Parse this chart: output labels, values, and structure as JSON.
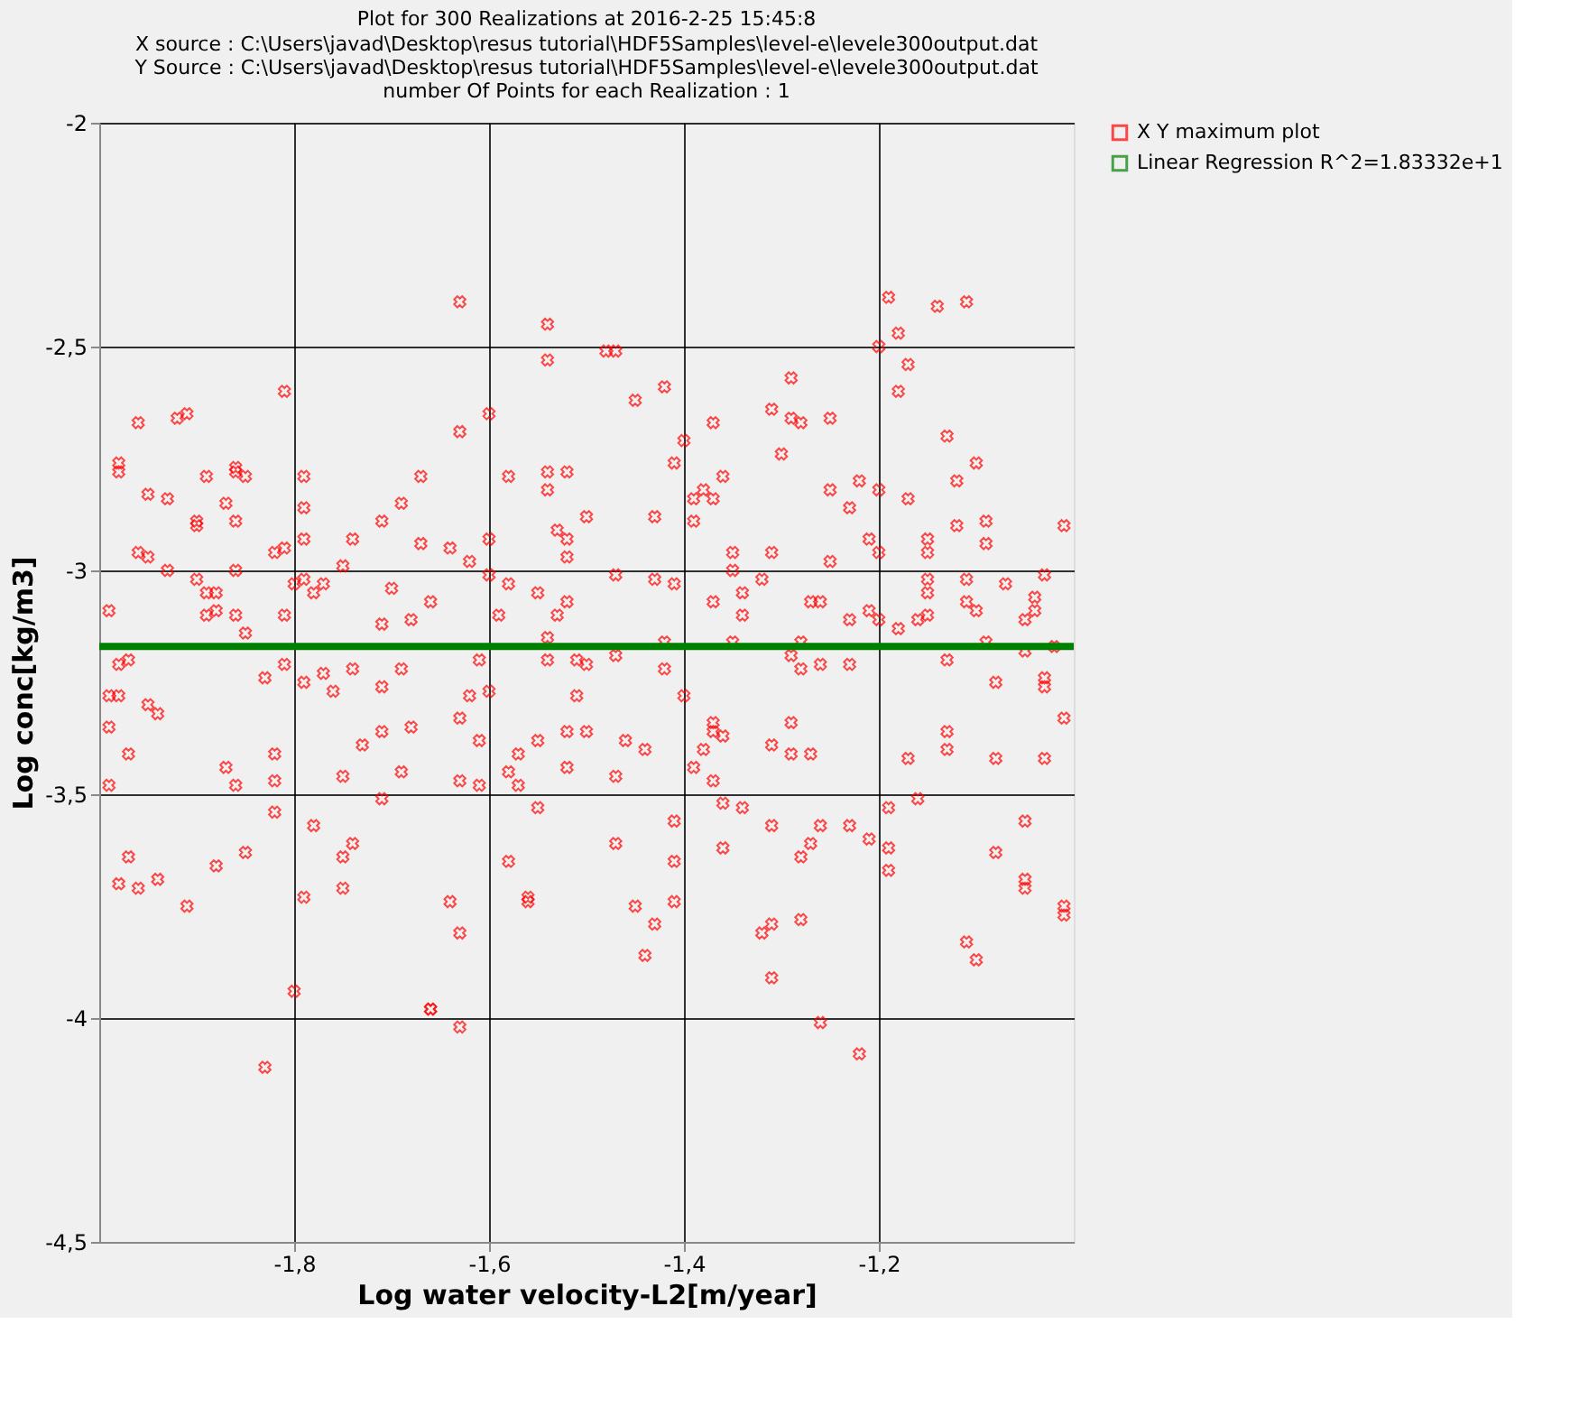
{
  "chart_data": {
    "type": "scatter",
    "title": "Plot for 300 Realizations at 2016-2-25  15:45:8",
    "subtitle": "X source : C:\\Users\\javad\\Desktop\\resus tutorial\\HDF5Samples\\level-e\\levele300output.dat\nY Source : C:\\Users\\javad\\Desktop\\resus tutorial\\HDF5Samples\\level-e\\levele300output.dat\nnumber Of Points for each Realization : 1",
    "xlabel": "Log water velocity-L2[m/year]",
    "ylabel": "Log conc[kg/m3]",
    "xlim": [
      -2.0,
      -1.0
    ],
    "ylim": [
      -4.5,
      -2
    ],
    "xticks": [
      {
        "value": -1.8,
        "label": "-1,8"
      },
      {
        "value": -1.6,
        "label": "-1,6"
      },
      {
        "value": -1.4,
        "label": "-1,4"
      },
      {
        "value": -1.2,
        "label": "-1,2"
      }
    ],
    "yticks": [
      {
        "value": -4.5,
        "label": "-4,5"
      },
      {
        "value": -4,
        "label": "-4"
      },
      {
        "value": -3.5,
        "label": "-3,5"
      },
      {
        "value": -3,
        "label": "-3"
      },
      {
        "value": -2.5,
        "label": "-2,5"
      },
      {
        "value": -2,
        "label": "-2"
      }
    ],
    "grid": true,
    "legend": "top right",
    "marker": "cross",
    "series": [
      {
        "name": "X Y maximum plot",
        "color": "#ff0000",
        "x": [
          -1.63,
          -1.54,
          -1.54,
          -1.48,
          -1.47,
          -1.42,
          -1.45,
          -1.6,
          -1.63,
          -1.37,
          -1.4,
          -1.41,
          -1.36,
          -1.58,
          -1.54,
          -1.52,
          -1.54,
          -1.38,
          -1.39,
          -1.37,
          -1.5,
          -1.43,
          -1.39,
          -1.53,
          -1.52,
          -1.52,
          -1.35,
          -1.35,
          -1.64,
          -1.62,
          -1.6,
          -1.6,
          -1.47,
          -1.58,
          -1.55,
          -1.52,
          -1.53,
          -1.43,
          -1.41,
          -1.37,
          -1.34,
          -1.34,
          -1.66,
          -1.59,
          -1.54,
          -1.42,
          -1.35,
          -1.61,
          -1.54,
          -1.51,
          -1.5,
          -1.47,
          -1.42,
          -1.81,
          -1.96,
          -1.92,
          -1.91,
          -1.98,
          -1.98,
          -1.95,
          -1.93,
          -1.89,
          -1.86,
          -1.86,
          -1.85,
          -1.79,
          -1.79,
          -1.87,
          -1.9,
          -1.9,
          -1.86,
          -1.79,
          -1.74,
          -1.67,
          -1.69,
          -1.71,
          -1.67,
          -1.96,
          -1.95,
          -1.93,
          -1.86,
          -1.82,
          -1.81,
          -1.75,
          -1.8,
          -1.79,
          -1.78,
          -1.77,
          -1.7,
          -1.9,
          -1.89,
          -1.88,
          -1.99,
          -1.89,
          -1.88,
          -1.86,
          -1.81,
          -1.85,
          -1.71,
          -1.68,
          -1.98,
          -1.97,
          -1.81,
          -1.83,
          -1.79,
          -1.77,
          -1.74,
          -1.69,
          -1.71,
          -1.19,
          -1.14,
          -1.11,
          -1.18,
          -1.2,
          -1.17,
          -1.18,
          -1.29,
          -1.31,
          -1.29,
          -1.28,
          -1.25,
          -1.13,
          -1.3,
          -1.1,
          -1.22,
          -1.25,
          -1.23,
          -1.2,
          -1.17,
          -1.12,
          -1.12,
          -1.09,
          -1.01,
          -1.21,
          -1.2,
          -1.31,
          -1.25,
          -1.15,
          -1.15,
          -1.09,
          -1.32,
          -1.15,
          -1.11,
          -1.07,
          -1.03,
          -1.15,
          -1.27,
          -1.26,
          -1.11,
          -1.1,
          -1.04,
          -1.04,
          -1.05,
          -1.23,
          -1.21,
          -1.2,
          -1.18,
          -1.16,
          -1.15,
          -1.28,
          -1.09,
          -1.02,
          -1.29,
          -1.28,
          -1.26,
          -1.23,
          -1.13,
          -1.05,
          -1.03,
          -1.03,
          -1.08,
          -1.99,
          -1.98,
          -1.95,
          -1.94,
          -1.99,
          -1.97,
          -1.87,
          -1.86,
          -1.82,
          -1.82,
          -1.99,
          -1.82,
          -1.97,
          -1.98,
          -1.96,
          -1.94,
          -1.88,
          -1.85,
          -1.91,
          -1.8,
          -1.83,
          -1.78,
          -1.74,
          -1.75,
          -1.75,
          -1.79,
          -1.71,
          -1.73,
          -1.71,
          -1.68,
          -1.69,
          -1.75,
          -1.76,
          -1.66,
          -1.62,
          -1.6,
          -1.51,
          -1.4,
          -1.63,
          -1.61,
          -1.57,
          -1.55,
          -1.52,
          -1.5,
          -1.46,
          -1.44,
          -1.52,
          -1.47,
          -1.63,
          -1.61,
          -1.58,
          -1.57,
          -1.37,
          -1.37,
          -1.36,
          -1.38,
          -1.39,
          -1.37,
          -1.36,
          -1.34,
          -1.55,
          -1.41,
          -1.47,
          -1.58,
          -1.41,
          -1.36,
          -1.56,
          -1.56,
          -1.64,
          -1.45,
          -1.43,
          -1.41,
          -1.63,
          -1.44,
          -1.66,
          -1.63,
          -1.01,
          -1.29,
          -1.31,
          -1.29,
          -1.27,
          -1.13,
          -1.13,
          -1.17,
          -1.08,
          -1.03,
          -1.19,
          -1.16,
          -1.31,
          -1.26,
          -1.23,
          -1.21,
          -1.19,
          -1.27,
          -1.28,
          -1.19,
          -1.05,
          -1.08,
          -1.05,
          -1.05,
          -1.01,
          -1.01,
          -1.32,
          -1.31,
          -1.28,
          -1.11,
          -1.1,
          -1.31,
          -1.26,
          -1.22
        ],
        "values": [
          -2.4,
          -2.45,
          -2.53,
          -2.51,
          -2.51,
          -2.59,
          -2.62,
          -2.65,
          -2.69,
          -2.67,
          -2.71,
          -2.76,
          -2.79,
          -2.79,
          -2.78,
          -2.78,
          -2.82,
          -2.82,
          -2.84,
          -2.84,
          -2.88,
          -2.88,
          -2.89,
          -2.91,
          -2.93,
          -2.97,
          -2.96,
          -3.0,
          -2.95,
          -2.98,
          -2.93,
          -3.01,
          -3.01,
          -3.03,
          -3.05,
          -3.07,
          -3.1,
          -3.02,
          -3.03,
          -3.07,
          -3.05,
          -3.1,
          -3.07,
          -3.1,
          -3.15,
          -3.16,
          -3.16,
          -3.2,
          -3.2,
          -3.2,
          -3.21,
          -3.19,
          -3.22,
          -2.6,
          -2.67,
          -2.66,
          -2.65,
          -2.76,
          -2.78,
          -2.83,
          -2.84,
          -2.79,
          -2.78,
          -2.77,
          -2.79,
          -2.79,
          -2.86,
          -2.85,
          -2.89,
          -2.9,
          -2.89,
          -2.93,
          -2.93,
          -2.79,
          -2.85,
          -2.89,
          -2.94,
          -2.96,
          -2.97,
          -3.0,
          -3.0,
          -2.96,
          -2.95,
          -2.99,
          -3.03,
          -3.02,
          -3.05,
          -3.03,
          -3.04,
          -3.02,
          -3.05,
          -3.05,
          -3.09,
          -3.1,
          -3.09,
          -3.1,
          -3.1,
          -3.14,
          -3.12,
          -3.11,
          -3.21,
          -3.2,
          -3.21,
          -3.24,
          -3.25,
          -3.23,
          -3.22,
          -3.22,
          -3.26,
          -2.39,
          -2.41,
          -2.4,
          -2.47,
          -2.5,
          -2.54,
          -2.6,
          -2.57,
          -2.64,
          -2.66,
          -2.67,
          -2.66,
          -2.7,
          -2.74,
          -2.76,
          -2.8,
          -2.82,
          -2.86,
          -2.82,
          -2.84,
          -2.8,
          -2.9,
          -2.89,
          -2.9,
          -2.93,
          -2.96,
          -2.96,
          -2.98,
          -2.93,
          -2.96,
          -2.94,
          -3.02,
          -3.02,
          -3.02,
          -3.03,
          -3.01,
          -3.05,
          -3.07,
          -3.07,
          -3.07,
          -3.09,
          -3.06,
          -3.09,
          -3.11,
          -3.11,
          -3.09,
          -3.11,
          -3.13,
          -3.11,
          -3.1,
          -3.16,
          -3.16,
          -3.17,
          -3.19,
          -3.22,
          -3.21,
          -3.21,
          -3.2,
          -3.18,
          -3.24,
          -3.26,
          -3.25,
          -3.28,
          -3.28,
          -3.3,
          -3.32,
          -3.35,
          -3.41,
          -3.44,
          -3.48,
          -3.41,
          -3.47,
          -3.48,
          -3.54,
          -3.64,
          -3.7,
          -3.71,
          -3.69,
          -3.66,
          -3.63,
          -3.75,
          -3.94,
          -4.11,
          -3.57,
          -3.61,
          -3.64,
          -3.71,
          -3.73,
          -3.51,
          -3.39,
          -3.36,
          -3.35,
          -3.45,
          -3.46,
          -3.27,
          -3.98,
          -3.28,
          -3.27,
          -3.28,
          -3.28,
          -3.33,
          -3.38,
          -3.41,
          -3.38,
          -3.36,
          -3.36,
          -3.38,
          -3.4,
          -3.44,
          -3.46,
          -3.47,
          -3.48,
          -3.45,
          -3.48,
          -3.34,
          -3.36,
          -3.37,
          -3.4,
          -3.44,
          -3.47,
          -3.52,
          -3.53,
          -3.53,
          -3.56,
          -3.61,
          -3.65,
          -3.65,
          -3.62,
          -3.73,
          -3.74,
          -3.74,
          -3.75,
          -3.79,
          -3.74,
          -3.81,
          -3.86,
          -3.98,
          -4.02,
          -3.33,
          -3.34,
          -3.39,
          -3.41,
          -3.41,
          -3.36,
          -3.4,
          -3.42,
          -3.42,
          -3.42,
          -3.53,
          -3.51,
          -3.57,
          -3.57,
          -3.57,
          -3.6,
          -3.62,
          -3.61,
          -3.64,
          -3.67,
          -3.56,
          -3.63,
          -3.69,
          -3.71,
          -3.75,
          -3.77,
          -3.81,
          -3.79,
          -3.78,
          -3.83,
          -3.87,
          -3.91,
          -4.01,
          -4.08
        ]
      },
      {
        "name": "Linear Regression R^2=1.83332e+1",
        "color": "#008000",
        "type": "line",
        "marker": "none",
        "line_style": "solid",
        "x": [
          -2.0,
          -1.0
        ],
        "values": [
          -3.17,
          -3.17
        ]
      }
    ]
  }
}
